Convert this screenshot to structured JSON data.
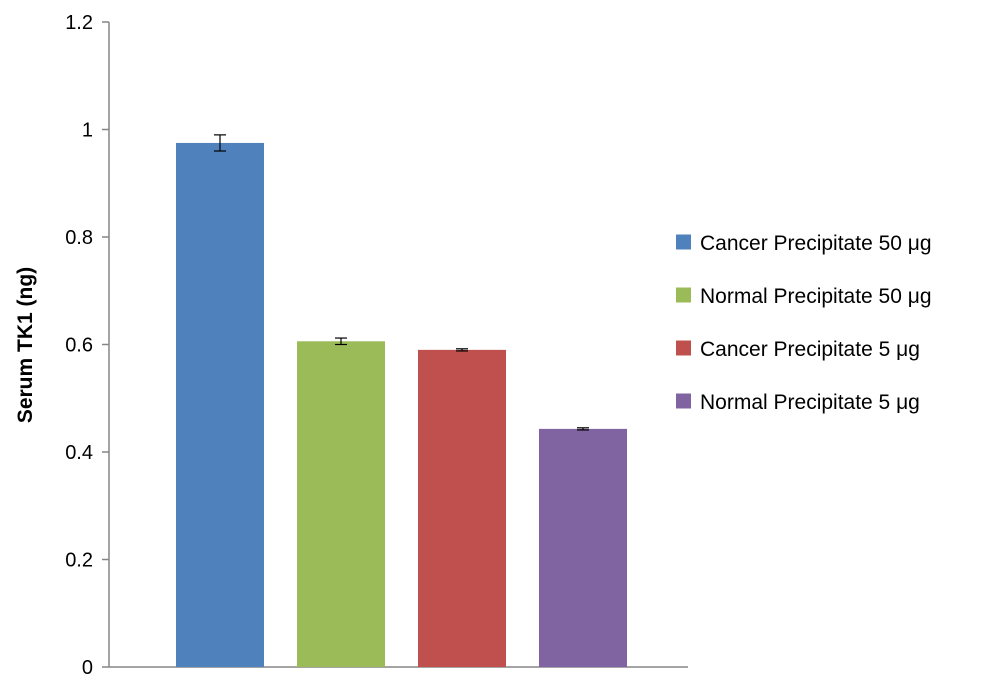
{
  "chart_data": {
    "type": "bar",
    "title": "",
    "xlabel": "",
    "ylabel": "Serum TK1 (ng)",
    "ylim": [
      0,
      1.2
    ],
    "yticks": [
      0,
      0.2,
      0.4,
      0.6,
      0.8,
      1,
      1.2
    ],
    "ytick_labels": [
      "0",
      "0.2",
      "0.4",
      "0.6",
      "0.8",
      "1",
      "1.2"
    ],
    "grid": false,
    "legend_position": "right",
    "series": [
      {
        "name": "Cancer Precipitate 50 μg",
        "value": 0.975,
        "error": 0.015,
        "color": "#4F81BD"
      },
      {
        "name": "Normal Precipitate 50 μg",
        "value": 0.606,
        "error": 0.006,
        "color": "#9BBB59"
      },
      {
        "name": "Cancer Precipitate 5 μg",
        "value": 0.59,
        "error": 0.002,
        "color": "#C0504D"
      },
      {
        "name": "Normal Precipitate 5 μg",
        "value": 0.443,
        "error": 0.002,
        "color": "#8064A2"
      }
    ]
  }
}
